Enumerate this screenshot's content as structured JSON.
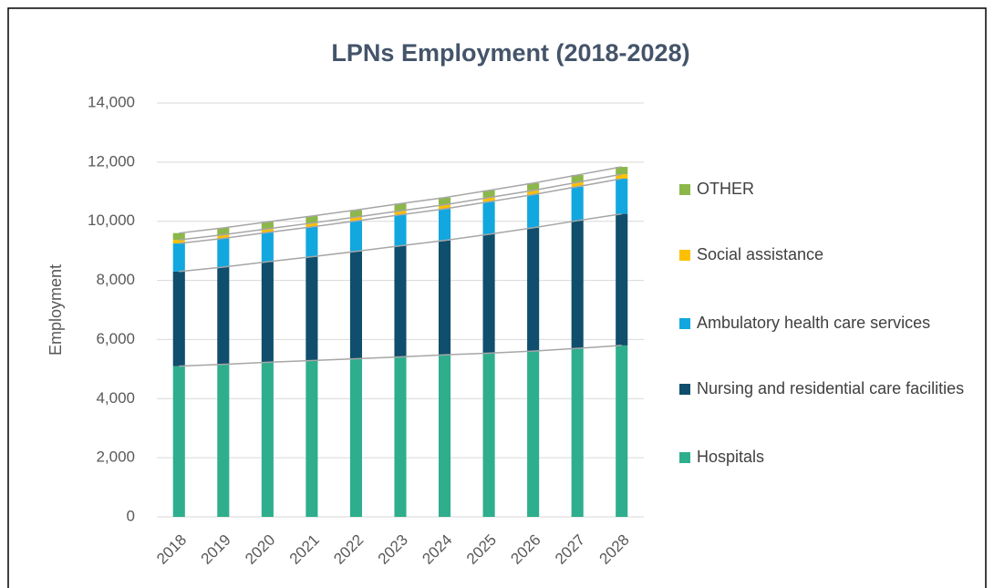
{
  "chart_data": {
    "type": "stacked_bar",
    "title": "LPNs Employment (2018-2028)",
    "y_label": "Employment",
    "categories": [
      "2018",
      "2019",
      "2020",
      "2021",
      "2022",
      "2023",
      "2024",
      "2025",
      "2026",
      "2027",
      "2028"
    ],
    "series": [
      {
        "name": "Hospitals",
        "color": "#2eae8d",
        "values": [
          5100,
          5160,
          5230,
          5290,
          5350,
          5410,
          5480,
          5540,
          5610,
          5700,
          5800
        ]
      },
      {
        "name": "Nursing and residential care facilities",
        "color": "#0f4e6c",
        "values": [
          3200,
          3290,
          3400,
          3510,
          3630,
          3760,
          3870,
          4020,
          4170,
          4320,
          4450
        ]
      },
      {
        "name": "Ambulatory health care services",
        "color": "#12a7de",
        "values": [
          950,
          970,
          990,
          1010,
          1030,
          1050,
          1070,
          1100,
          1120,
          1150,
          1190
        ]
      },
      {
        "name": "Social assistance",
        "color": "#fcc000",
        "values": [
          120,
          123,
          126,
          129,
          132,
          135,
          138,
          141,
          144,
          147,
          150
        ]
      },
      {
        "name": "OTHER",
        "color": "#8cb74a",
        "values": [
          230,
          232,
          234,
          236,
          238,
          240,
          242,
          244,
          246,
          248,
          250
        ]
      }
    ],
    "ylim": [
      0,
      14000
    ],
    "yticks": [
      0,
      {
        "value": 2000,
        "label": "2,000"
      },
      {
        "value": 4000,
        "label": "4,000"
      },
      {
        "value": 6000,
        "label": "6,000"
      },
      {
        "value": 8000,
        "label": "8,000"
      },
      {
        "value": 10000,
        "label": "10,000"
      },
      {
        "value": 12000,
        "label": "12,000"
      },
      {
        "value": 14000,
        "label": "14,000"
      }
    ],
    "grid": true,
    "legend": "right"
  }
}
